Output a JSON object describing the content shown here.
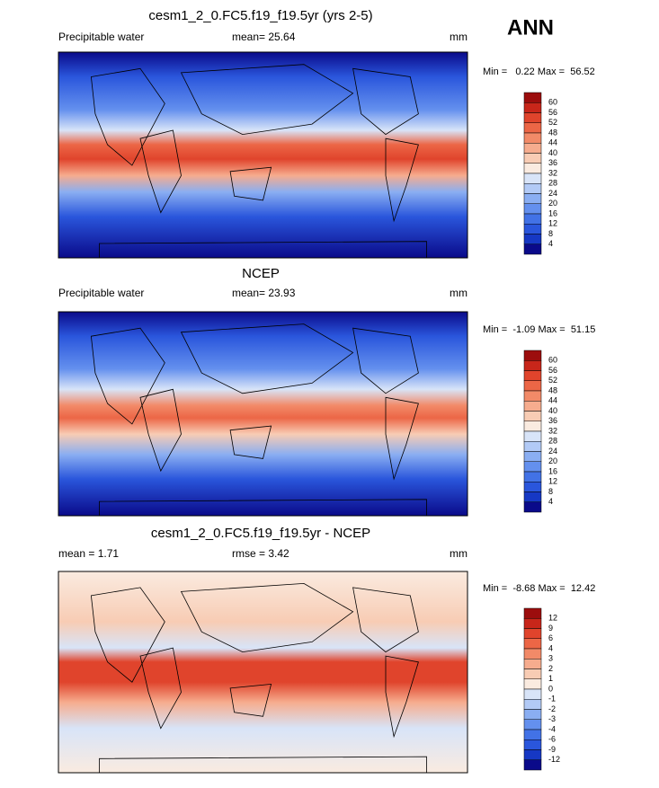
{
  "header": {
    "season": "ANN"
  },
  "panels": [
    {
      "title": "cesm1_2_0.FC5.f19_f19.5yr (yrs 2-5)",
      "left_label": "Precipitable water",
      "center_label": "mean=  25.64",
      "right_label": "mm",
      "min_max": "Min =   0.22 Max =  56.52",
      "colorbar": {
        "levels": [
          "60",
          "56",
          "52",
          "48",
          "44",
          "40",
          "36",
          "32",
          "28",
          "24",
          "20",
          "16",
          "12",
          "8",
          "4"
        ],
        "colors": [
          "#9c0d0d",
          "#c8261a",
          "#e0442c",
          "#ec6646",
          "#f28a68",
          "#f6ac8e",
          "#f8ccb4",
          "#faebe0",
          "#d8e4f8",
          "#b2caf6",
          "#8aaef2",
          "#6490ee",
          "#4272e6",
          "#2a56dc",
          "#1638c4",
          "#0a0a8a"
        ]
      }
    },
    {
      "title": "NCEP",
      "left_label": "Precipitable water",
      "center_label": "mean=  23.93",
      "right_label": "mm",
      "min_max": "Min =  -1.09 Max =  51.15",
      "colorbar": {
        "levels": [
          "60",
          "56",
          "52",
          "48",
          "44",
          "40",
          "36",
          "32",
          "28",
          "24",
          "20",
          "16",
          "12",
          "8",
          "4"
        ],
        "colors": [
          "#9c0d0d",
          "#c8261a",
          "#e0442c",
          "#ec6646",
          "#f28a68",
          "#f6ac8e",
          "#f8ccb4",
          "#faebe0",
          "#d8e4f8",
          "#b2caf6",
          "#8aaef2",
          "#6490ee",
          "#4272e6",
          "#2a56dc",
          "#1638c4",
          "#0a0a8a"
        ]
      }
    },
    {
      "title": "cesm1_2_0.FC5.f19_f19.5yr - NCEP",
      "left_label": "mean =   1.71",
      "center_label": "rmse =   3.42",
      "right_label": "mm",
      "min_max": "Min =  -8.68 Max =  12.42",
      "colorbar": {
        "levels": [
          "12",
          "9",
          "6",
          "4",
          "3",
          "2",
          "1",
          "0",
          "-1",
          "-2",
          "-3",
          "-4",
          "-6",
          "-9",
          "-12"
        ],
        "colors": [
          "#9c0d0d",
          "#c8261a",
          "#e0442c",
          "#ec6646",
          "#f28a68",
          "#f6ac8e",
          "#f8ccb4",
          "#faebe0",
          "#d8e4f8",
          "#b2caf6",
          "#8aaef2",
          "#6490ee",
          "#4272e6",
          "#2a56dc",
          "#1638c4",
          "#0a0a8a"
        ]
      }
    }
  ]
}
